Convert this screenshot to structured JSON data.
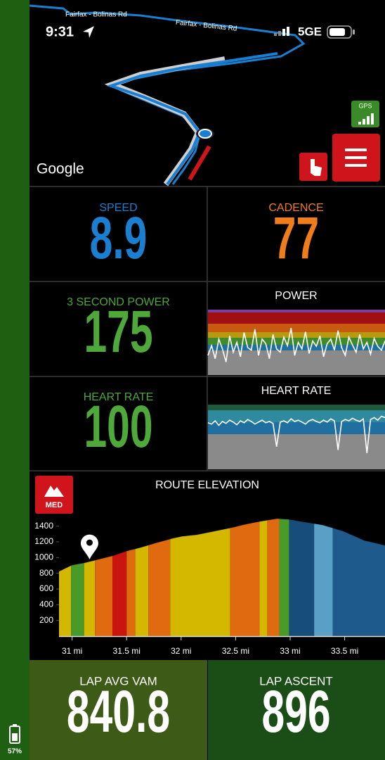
{
  "status_bar": {
    "time": "9:31",
    "network": "5GE"
  },
  "map": {
    "road_labels": [
      "Fairfax - Bolinas Rd",
      "Fairfax - Bolinas Rd"
    ],
    "attribution": "Google",
    "gps_badge": "GPS"
  },
  "tiles": [
    {
      "label": "SPEED",
      "value": 8.9
    },
    {
      "label": "CADENCE",
      "value": 77
    },
    {
      "label": "3 SECOND POWER",
      "value": 175
    },
    {
      "label": "HEART RATE",
      "value": 100
    }
  ],
  "power_graph": {
    "title": "POWER",
    "ylim": [
      0,
      100
    ],
    "values": [
      30,
      45,
      25,
      55,
      40,
      20,
      60,
      35,
      50,
      28,
      65,
      42,
      38,
      70,
      30,
      55,
      48,
      25,
      62,
      40,
      35,
      58,
      45,
      72,
      30,
      50,
      40,
      66,
      33,
      52,
      44,
      60,
      28,
      48,
      55,
      38,
      68,
      42,
      30,
      58,
      46,
      35,
      62,
      40,
      50,
      32,
      56,
      44,
      38,
      52
    ]
  },
  "heart_rate_graph": {
    "title": "HEART RATE",
    "ylim": [
      0,
      100
    ],
    "values": [
      72,
      70,
      75,
      68,
      74,
      71,
      76,
      73,
      69,
      75,
      72,
      77,
      74,
      70,
      73,
      76,
      72,
      74,
      71,
      35,
      73,
      75,
      72,
      78,
      74,
      76,
      73,
      70,
      75,
      77,
      74,
      72,
      76,
      73,
      78,
      75,
      30,
      74,
      77,
      75,
      79,
      76,
      74,
      78,
      25,
      77,
      80,
      76,
      82,
      80
    ]
  },
  "route_elevation": {
    "title": "ROUTE ELEVATION",
    "difficulty": "MED",
    "xlim": [
      30.88,
      33.87
    ],
    "ylim": [
      0,
      1500
    ],
    "yticks": [
      200,
      400,
      600,
      800,
      1000,
      1200,
      1400
    ],
    "xticks": [
      {
        "value": 31,
        "label": "31 mi"
      },
      {
        "value": 31.5,
        "label": "31.5 mi"
      },
      {
        "value": 32,
        "label": "32 mi"
      },
      {
        "value": 32.5,
        "label": "32.5 mi"
      },
      {
        "value": 33,
        "label": "33 mi"
      },
      {
        "value": 33.5,
        "label": "33.5 mi"
      }
    ],
    "x": [
      30.88,
      31.0,
      31.11,
      31.24,
      31.37,
      31.5,
      31.63,
      31.76,
      31.92,
      32.01,
      32.14,
      32.27,
      32.46,
      32.59,
      32.72,
      32.88,
      32.99,
      33.1,
      33.3,
      33.49,
      33.68,
      33.87
    ],
    "values": [
      824,
      904,
      931,
      976,
      1021,
      1083,
      1128,
      1182,
      1244,
      1271,
      1289,
      1325,
      1379,
      1423,
      1459,
      1495,
      1486,
      1459,
      1414,
      1334,
      1218,
      1155
    ],
    "grade_bands": [
      {
        "start": 30.88,
        "end": 30.99,
        "color": "#d4b800"
      },
      {
        "start": 30.99,
        "end": 31.11,
        "color": "#4a9a2a"
      },
      {
        "start": 31.11,
        "end": 31.21,
        "color": "#d4b800"
      },
      {
        "start": 31.21,
        "end": 31.37,
        "color": "#e06a10"
      },
      {
        "start": 31.37,
        "end": 31.5,
        "color": "#c8160f"
      },
      {
        "start": 31.5,
        "end": 31.58,
        "color": "#e06a10"
      },
      {
        "start": 31.58,
        "end": 31.7,
        "color": "#d4b800"
      },
      {
        "start": 31.7,
        "end": 31.9,
        "color": "#e06a10"
      },
      {
        "start": 31.9,
        "end": 32.45,
        "color": "#d4b800"
      },
      {
        "start": 32.45,
        "end": 32.72,
        "color": "#e06a10"
      },
      {
        "start": 32.72,
        "end": 32.79,
        "color": "#d4b800"
      },
      {
        "start": 32.79,
        "end": 32.9,
        "color": "#e06a10"
      },
      {
        "start": 32.9,
        "end": 32.99,
        "color": "#4a9a2a"
      },
      {
        "start": 32.99,
        "end": 33.22,
        "color": "#174d7a"
      },
      {
        "start": 33.22,
        "end": 33.39,
        "color": "#5aa0c6"
      },
      {
        "start": 33.39,
        "end": 33.87,
        "color": "#1f5a8c"
      }
    ],
    "marker_x": 31.16
  },
  "lap_tiles": [
    {
      "label": "LAP AVG VAM",
      "value": 840.8
    },
    {
      "label": "LAP ASCENT",
      "value": 896
    }
  ],
  "side_bar": {
    "battery": "57%"
  }
}
